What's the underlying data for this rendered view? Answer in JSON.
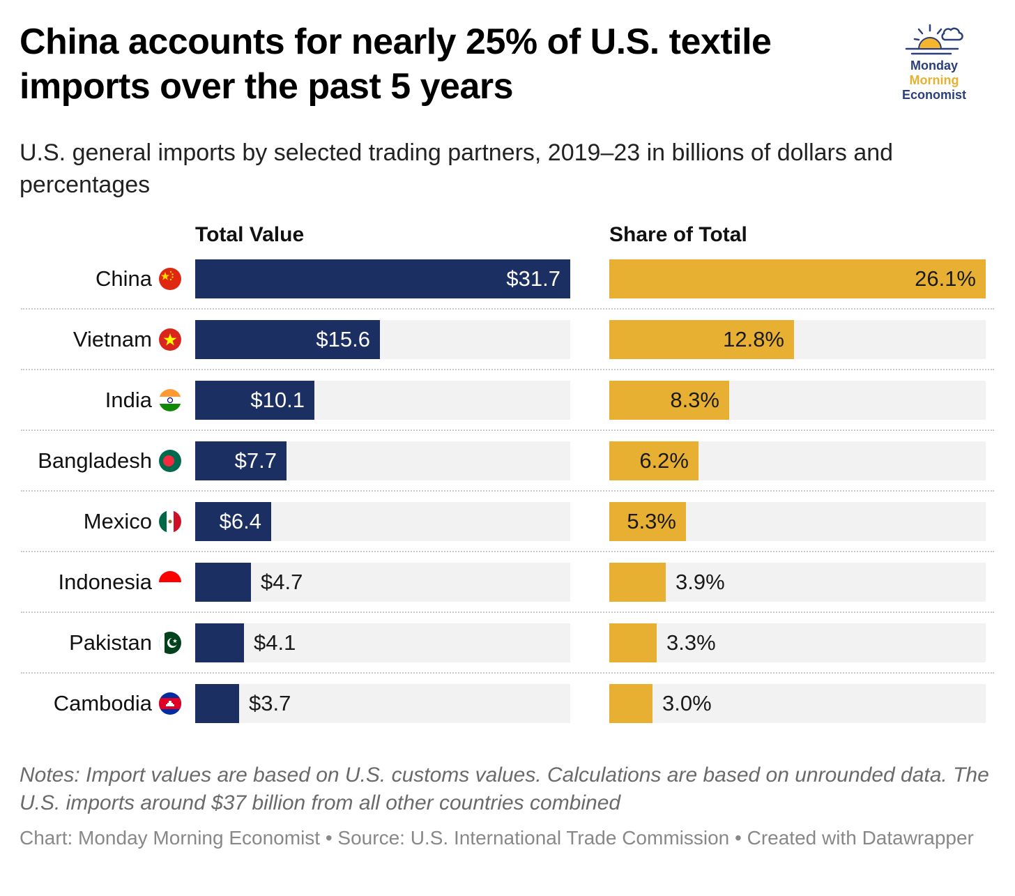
{
  "title": "China accounts for nearly 25% of U.S. textile imports over the past 5 years",
  "subtitle": "U.S. general imports by selected trading partners, 2019–23 in billions of dollars and percentages",
  "logo": {
    "line1": "Monday",
    "line2": "Morning",
    "line3": "Economist"
  },
  "colors": {
    "value_bar": "#1b2f63",
    "share_bar": "#e8b033",
    "track": "#f2f2f2"
  },
  "chart_data": {
    "type": "bar",
    "orientation": "horizontal",
    "categories": [
      "China",
      "Vietnam",
      "India",
      "Bangladesh",
      "Mexico",
      "Indonesia",
      "Pakistan",
      "Cambodia"
    ],
    "flags": [
      "china-flag-icon",
      "vietnam-flag-icon",
      "india-flag-icon",
      "bangladesh-flag-icon",
      "mexico-flag-icon",
      "indonesia-flag-icon",
      "pakistan-flag-icon",
      "cambodia-flag-icon"
    ],
    "series": [
      {
        "name": "Total Value",
        "values": [
          31.7,
          15.6,
          10.1,
          7.7,
          6.4,
          4.7,
          4.1,
          3.7
        ],
        "labels": [
          "$31.7",
          "$15.6",
          "$10.1",
          "$7.7",
          "$6.4",
          "$4.7",
          "$4.1",
          "$3.7"
        ],
        "xlim": [
          0,
          31.7
        ]
      },
      {
        "name": "Share of Total",
        "values": [
          26.1,
          12.8,
          8.3,
          6.2,
          5.3,
          3.9,
          3.3,
          3.0
        ],
        "labels": [
          "26.1%",
          "12.8%",
          "8.3%",
          "6.2%",
          "5.3%",
          "3.9%",
          "3.3%",
          "3.0%"
        ],
        "xlim": [
          0,
          26.1
        ]
      }
    ]
  },
  "notes": "Notes: Import values are based on U.S. customs values. Calculations are based on unrounded data. The U.S. imports around $37 billion from all other countries combined",
  "credit": "Chart: Monday Morning Economist • Source: U.S. International Trade Commission  • Created with Datawrapper"
}
